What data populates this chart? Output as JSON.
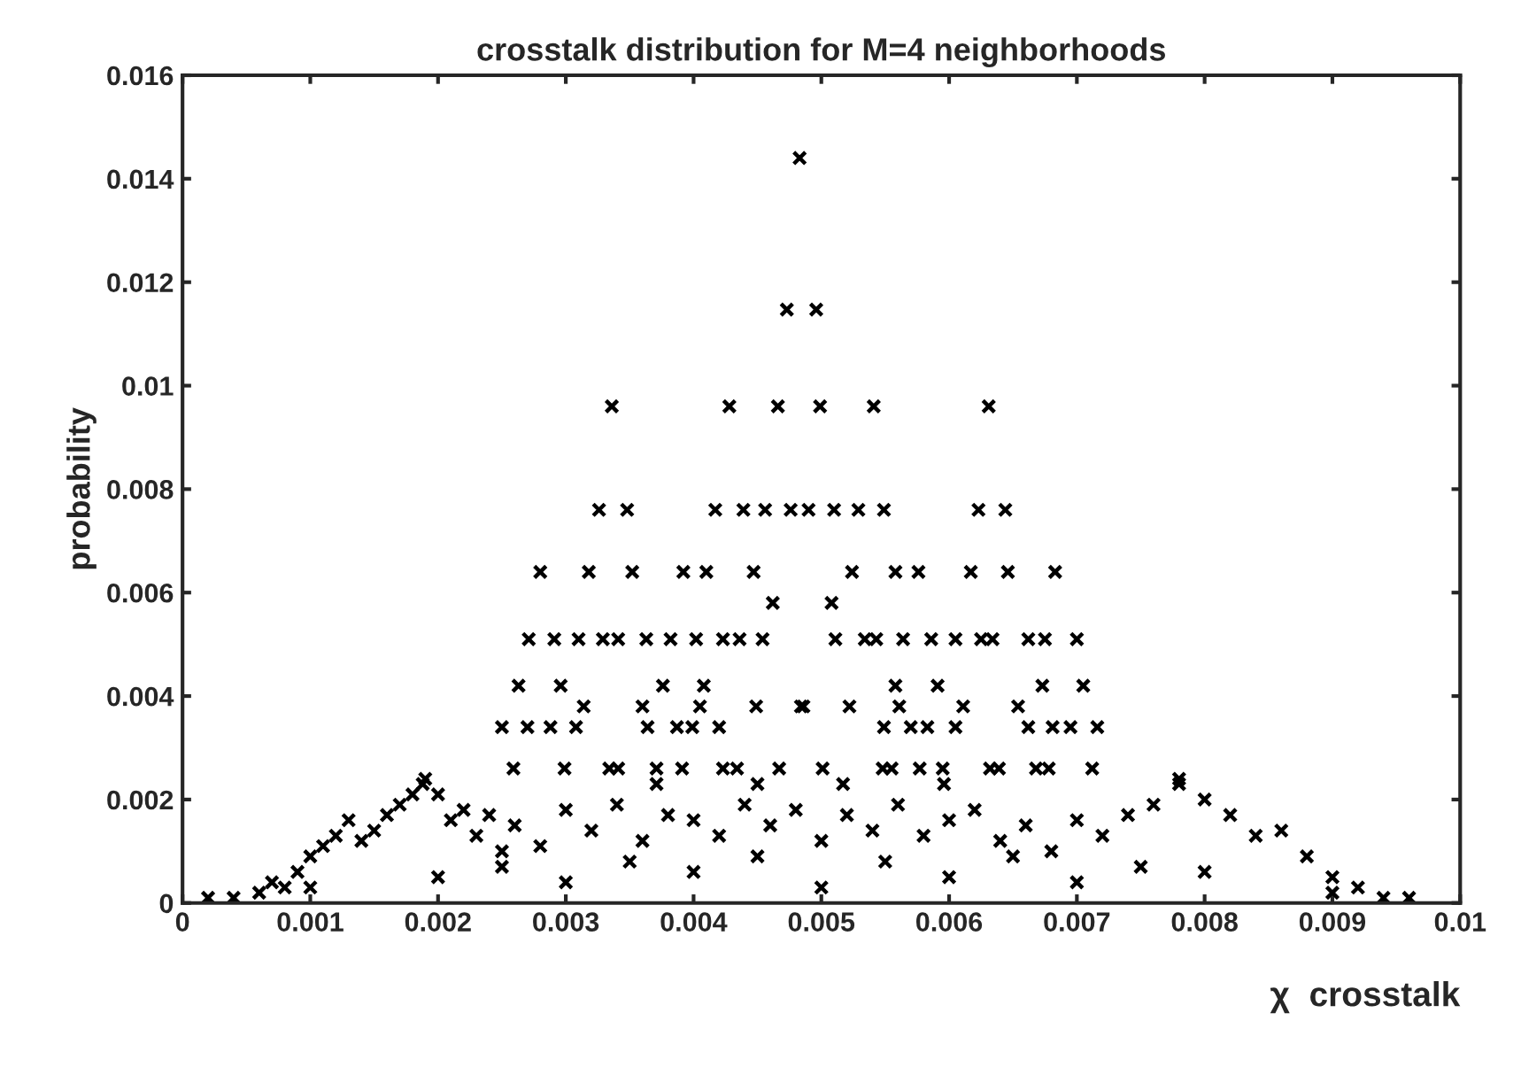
{
  "chart_data": {
    "type": "scatter",
    "title": "crosstalk distribution for M=4 neighborhoods",
    "xlabel": "χ  crosstalk",
    "ylabel": "probability",
    "xlim": [
      0,
      0.01
    ],
    "ylim": [
      0,
      0.016
    ],
    "xticks": [
      0,
      0.001,
      0.002,
      0.003,
      0.004,
      0.005,
      0.006,
      0.007,
      0.008,
      0.009,
      0.01
    ],
    "yticks": [
      0,
      0.002,
      0.004,
      0.006,
      0.008,
      0.01,
      0.012,
      0.014,
      0.016
    ],
    "grid": false,
    "marker": "cross",
    "series": [
      {
        "color": "#000000",
        "x": [
          0.00483,
          0.00473,
          0.00496,
          0.00336,
          0.00428,
          0.00466,
          0.00499,
          0.00541,
          0.00631,
          0.00326,
          0.00348,
          0.00417,
          0.00439,
          0.00456,
          0.00476,
          0.0049,
          0.0051,
          0.00529,
          0.00549,
          0.00623,
          0.00644,
          0.0028,
          0.00318,
          0.00352,
          0.00392,
          0.0041,
          0.00447,
          0.00524,
          0.00558,
          0.00576,
          0.00617,
          0.00646,
          0.00683,
          0.00462,
          0.00508,
          0.00271,
          0.00291,
          0.0031,
          0.00329,
          0.00341,
          0.00363,
          0.00382,
          0.00402,
          0.00423,
          0.00436,
          0.00454,
          0.00511,
          0.00534,
          0.00543,
          0.00564,
          0.00586,
          0.00605,
          0.00625,
          0.00634,
          0.00662,
          0.00675,
          0.007,
          0.00263,
          0.00296,
          0.00376,
          0.00408,
          0.00558,
          0.00591,
          0.00673,
          0.00705,
          0.00314,
          0.0036,
          0.00405,
          0.00449,
          0.00484,
          0.00486,
          0.00522,
          0.00561,
          0.00611,
          0.00654,
          0.0025,
          0.0027,
          0.00288,
          0.00308,
          0.00364,
          0.00387,
          0.00399,
          0.0042,
          0.00549,
          0.0057,
          0.00583,
          0.00605,
          0.00662,
          0.00681,
          0.00695,
          0.00716,
          0.00259,
          0.00299,
          0.00334,
          0.00341,
          0.00371,
          0.00391,
          0.00423,
          0.00434,
          0.00467,
          0.00501,
          0.00548,
          0.00555,
          0.00577,
          0.00595,
          0.00632,
          0.00639,
          0.00668,
          0.00678,
          0.00712,
          0.00188,
          0.0045,
          0.00371,
          0.00517,
          0.00596,
          0.0078,
          0.0002,
          0.0004,
          0.0006,
          0.0007,
          0.0008,
          0.0009,
          0.001,
          0.0011,
          0.0012,
          0.0013,
          0.0014,
          0.0015,
          0.0016,
          0.0017,
          0.0018,
          0.0019,
          0.002,
          0.0021,
          0.0022,
          0.0023,
          0.0024,
          0.0025,
          0.0026,
          0.0028,
          0.003,
          0.0032,
          0.0034,
          0.0036,
          0.0038,
          0.004,
          0.0042,
          0.0044,
          0.0046,
          0.0048,
          0.005,
          0.0052,
          0.0054,
          0.0056,
          0.0058,
          0.006,
          0.0062,
          0.0064,
          0.0066,
          0.0068,
          0.007,
          0.0072,
          0.0074,
          0.0076,
          0.0078,
          0.008,
          0.0082,
          0.0084,
          0.0086,
          0.0088,
          0.009,
          0.0092,
          0.0094,
          0.0096,
          0.001,
          0.002,
          0.003,
          0.004,
          0.005,
          0.006,
          0.007,
          0.008,
          0.009,
          0.0035,
          0.0045,
          0.0055,
          0.0065,
          0.0075,
          0.0025
        ],
        "values": [
          0.0144,
          0.01147,
          0.01147,
          0.0096,
          0.0096,
          0.0096,
          0.0096,
          0.0096,
          0.0096,
          0.0076,
          0.0076,
          0.0076,
          0.0076,
          0.0076,
          0.0076,
          0.0076,
          0.0076,
          0.0076,
          0.0076,
          0.0076,
          0.0076,
          0.0064,
          0.0064,
          0.0064,
          0.0064,
          0.0064,
          0.0064,
          0.0064,
          0.0064,
          0.0064,
          0.0064,
          0.0064,
          0.0064,
          0.0058,
          0.0058,
          0.0051,
          0.0051,
          0.0051,
          0.0051,
          0.0051,
          0.0051,
          0.0051,
          0.0051,
          0.0051,
          0.0051,
          0.0051,
          0.0051,
          0.0051,
          0.0051,
          0.0051,
          0.0051,
          0.0051,
          0.0051,
          0.0051,
          0.0051,
          0.0051,
          0.0051,
          0.0042,
          0.0042,
          0.0042,
          0.0042,
          0.0042,
          0.0042,
          0.0042,
          0.0042,
          0.0038,
          0.0038,
          0.0038,
          0.0038,
          0.0038,
          0.0038,
          0.0038,
          0.0038,
          0.0038,
          0.0038,
          0.0034,
          0.0034,
          0.0034,
          0.0034,
          0.0034,
          0.0034,
          0.0034,
          0.0034,
          0.0034,
          0.0034,
          0.0034,
          0.0034,
          0.0034,
          0.0034,
          0.0034,
          0.0034,
          0.0026,
          0.0026,
          0.0026,
          0.0026,
          0.0026,
          0.0026,
          0.0026,
          0.0026,
          0.0026,
          0.0026,
          0.0026,
          0.0026,
          0.0026,
          0.0026,
          0.0026,
          0.0026,
          0.0026,
          0.0026,
          0.0026,
          0.0023,
          0.0023,
          0.0023,
          0.0023,
          0.0023,
          0.0023,
          0.0001,
          0.0001,
          0.0002,
          0.0004,
          0.0003,
          0.0006,
          0.0009,
          0.0011,
          0.0013,
          0.0016,
          0.0012,
          0.0014,
          0.0017,
          0.0019,
          0.0021,
          0.0024,
          0.0021,
          0.0016,
          0.0018,
          0.0013,
          0.0017,
          0.001,
          0.0015,
          0.0011,
          0.0018,
          0.0014,
          0.0019,
          0.0012,
          0.0017,
          0.0016,
          0.0013,
          0.0019,
          0.0015,
          0.0018,
          0.0012,
          0.0017,
          0.0014,
          0.0019,
          0.0013,
          0.0016,
          0.0018,
          0.0012,
          0.0015,
          0.001,
          0.0016,
          0.0013,
          0.0017,
          0.0019,
          0.0024,
          0.002,
          0.0017,
          0.0013,
          0.0014,
          0.0009,
          0.0005,
          0.0003,
          0.0001,
          0.0001,
          0.0003,
          0.0005,
          0.0004,
          0.0006,
          0.0003,
          0.0005,
          0.0004,
          0.0006,
          0.0002,
          0.0008,
          0.0009,
          0.0008,
          0.0009,
          0.0007,
          0.0007
        ]
      }
    ]
  }
}
